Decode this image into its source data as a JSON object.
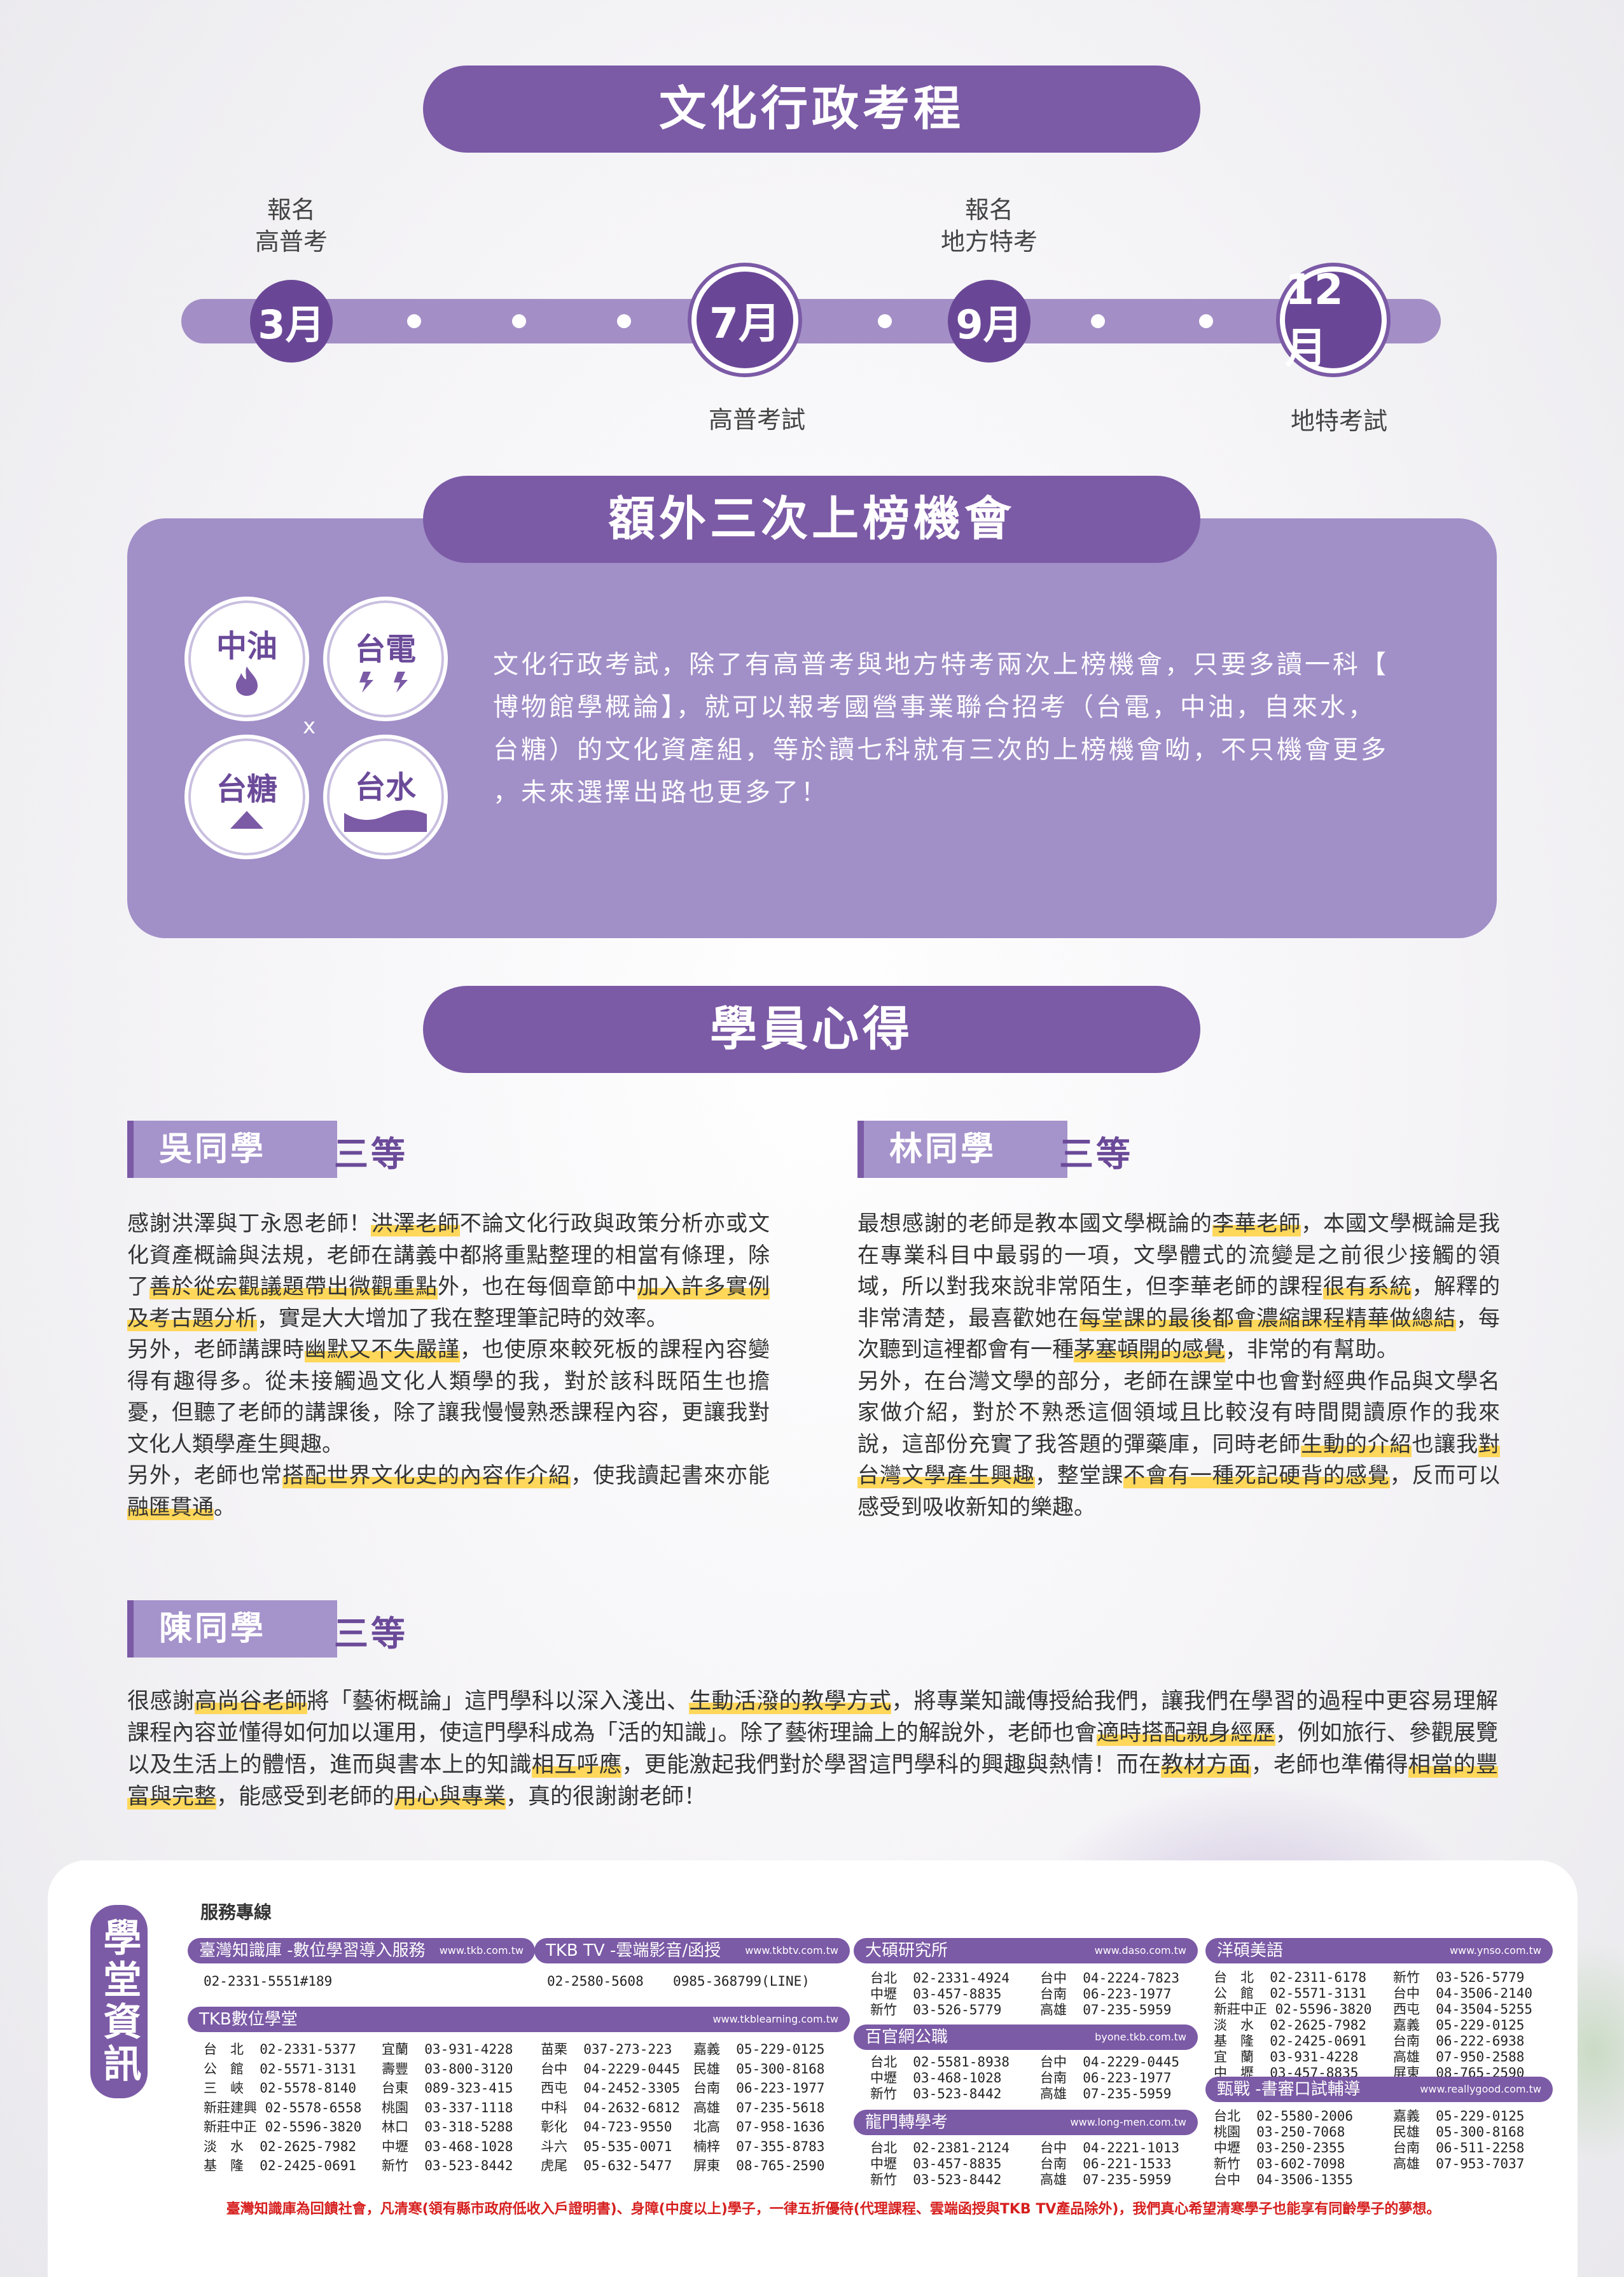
{
  "header": {
    "title": "文化行政考程"
  },
  "timeline": {
    "months": [
      "3月",
      "7月",
      "9月",
      "12月"
    ],
    "top_labels": [
      {
        "line1": "報名",
        "line2": "高普考"
      },
      {
        "line1": "報名",
        "line2": "地方特考"
      }
    ],
    "bottom_labels": [
      "高普考試",
      "地特考試"
    ]
  },
  "opportunity": {
    "title": "額外三次上榜機會",
    "badges": [
      "中油",
      "台電",
      "台糖",
      "台水"
    ],
    "times": "x",
    "lines": [
      "文化行政考試，除了有高普考與地方特考兩次上榜機會，只要多讀一科【",
      "博物館學概論】，就可以報考國營事業聯合招考（台電，中油，自來水，",
      "台糖）的文化資產組，等於讀七科就有三次的上榜機會呦，不只機會更多",
      "，未來選擇出路也更多了！"
    ]
  },
  "testimonials": {
    "title": "學員心得",
    "wu": {
      "name": "吳同學",
      "rank": "三等",
      "p1a": "感謝洪澤與丁永恩老師！",
      "p1h1": "洪澤老師",
      "p1b": "不論文化行政與政策分析亦或文化資產概論與法規，老師在講義中都將重點整理的相當有條理，除了",
      "p1h2": "善於從宏觀議題帶出微觀重點",
      "p1c": "外，也在每個章節中",
      "p1h3": "加入許多實例及考古題分析",
      "p1d": "，實是大大增加了我在整理筆記時的效率。",
      "p2a": "另外，老師講課時",
      "p2h1": "幽默又不失嚴謹",
      "p2b": "，也使原來較死板的課程內容變得有趣得多。從未接觸過文化人類學的我，對於該科既陌生也擔憂，但聽了老師的講課後，除了讓我慢慢熟悉課程內容，更讓我對文化人類學產生興趣。",
      "p3a": "另外，老師也常",
      "p3h1": "搭配世界文化史的內容作介紹",
      "p3b": "，使我讀起書來亦能",
      "p3h2": "融匯貫通",
      "p3c": "。"
    },
    "lin": {
      "name": "林同學",
      "rank": "三等",
      "p1a": "最想感謝的老師是教本國文學概論的",
      "p1h1": "李華老師",
      "p1b": "，本國文學概論是我在專業科目中最弱的一項，文學體式的流變是之前很少接觸的領域，所以對我來說非常陌生，但李華老師的課程",
      "p1h2": "很有系統",
      "p1c": "，解釋的非常清楚，最喜歡她在",
      "p1h3": "每堂課的最後都會濃縮課程精華做總結",
      "p1d": "，每次聽到這裡都會有一種",
      "p1h4": "茅塞頓開的感覺",
      "p1e": "，非常的有幫助。",
      "p2a": "另外，在台灣文學的部分，老師在課堂中也會對經典作品與文學名家做介紹，對於不熟悉這個領域且比較沒有時間閱讀原作的我來說，這部份充實了我答題的彈藥庫，同時老師",
      "p2h1": "生動的介紹",
      "p2b": "也讓我",
      "p2h2": "對台灣文學產生興趣",
      "p2c": "，整堂課",
      "p2h3": "不會有一種死記硬背的感覺",
      "p2d": "，反而可以感受到吸收新知的樂趣。"
    },
    "chen": {
      "name": "陳同學",
      "rank": "三等",
      "a": "很感謝",
      "h1": "高尚谷老師",
      "b": "將「藝術概論」這門學科以深入淺出、",
      "h2": "生動活潑的教學方式",
      "c": "，將專業知識傳授給我們，讓我們在學習的過程中更容易理解課程內容並懂得如何加以運用，使這門學科成為「活的知識」。除了藝術理論上的解說外，老師也會",
      "h3": "適時搭配親身經歷",
      "d": "，例如旅行、參觀展覽以及生活上的體悟，進而與書本上的知識",
      "h4": "相互呼應",
      "e": "，更能激起我們對於學習這門學科的興趣與熱情！而在",
      "h5": "教材方面",
      "f": "，老師也準備得",
      "h6": "相當的豐富與完整",
      "g": "，能感受到老師的",
      "h7": "用心與專業",
      "h": "，真的很謝謝老師！"
    }
  },
  "footer": {
    "side_title": "學堂資訊",
    "service_label": "服務專線",
    "tkb_title": "臺灣知識庫 -數位學習導入服務",
    "tkb_url": "www.tkb.com.tw",
    "tkb_phone": "02-2331-5551#189",
    "tkbtv_title": "TKB TV -雲端影音/函授",
    "tkbtv_url": "www.tkbtv.com.tw",
    "tkbtv_phone1": "02-2580-5608",
    "tkbtv_phone2": "0985-368799(LINE)",
    "digital_title": "TKB數位學堂",
    "digital_url": "www.tkblearning.com.tw",
    "digital_col1": "台　北  02-2331-5377\n公　館  02-5571-3131\n三　峽  02-5578-8140\n新莊建興 02-5578-6558\n新莊中正 02-5596-3820\n淡　水  02-2625-7982\n基　隆  02-2425-0691",
    "digital_col2": "宜蘭  03-931-4228\n壽豐  03-800-3120\n台東  089-323-415\n桃園  03-337-1118\n林口  03-318-5288\n中壢  03-468-1028\n新竹  03-523-8442",
    "digital_col3": "苗栗  037-273-223\n台中  04-2229-0445\n西屯  04-2452-3305\n中科  04-2632-6812\n彰化  04-723-9550\n斗六  05-535-0071\n虎尾  05-632-5477",
    "digital_col4": "嘉義  05-229-0125\n民雄  05-300-8168\n台南  06-223-1977\n高雄  07-235-5618\n北高  07-958-1636\n楠梓  07-355-8783\n屏東  08-765-2590",
    "daso_title": "大碩研究所",
    "daso_url": "www.daso.com.tw",
    "daso_col1": "台北  02-2331-4924\n中壢  03-457-8835\n新竹  03-526-5779",
    "daso_col2": "台中  04-2224-7823\n台南  06-223-1977\n高雄  07-235-5959",
    "byone_title": "百官網公職",
    "byone_url": "byone.tkb.com.tw",
    "byone_col1": "台北  02-5581-8938\n中壢  03-468-1028\n新竹  03-523-8442",
    "byone_col2": "台中  04-2229-0445\n台南  06-223-1977\n高雄  07-235-5959",
    "longmen_title": "龍門轉學考",
    "longmen_url": "www.long-men.com.tw",
    "longmen_col1": "台北  02-2381-2124\n中壢  03-457-8835\n新竹  03-523-8442",
    "longmen_col2": "台中  04-2221-1013\n台南  06-221-1533\n高雄  07-235-5959",
    "ynso_title": "洋碩美語",
    "ynso_url": "www.ynso.com.tw",
    "ynso_col1": "台　北  02-2311-6178\n公　館  02-5571-3131\n新莊中正 02-5596-3820\n淡　水  02-2625-7982\n基　隆  02-2425-0691\n宜　蘭  03-931-4228\n中　壢  03-457-8835",
    "ynso_col2": "新竹  03-526-5779\n台中  04-3506-2140\n西屯  04-3504-5255\n嘉義  05-229-0125\n台南  06-222-6938\n高雄  07-950-2588\n屏東  08-765-2590",
    "good_title": "甄戰 -書審口試輔導",
    "good_url": "www.reallygood.com.tw",
    "good_col1": "台北  02-5580-2006\n桃園  03-250-7068\n中壢  03-250-2355\n新竹  03-602-7098\n台中  04-3506-1355",
    "good_col2": "嘉義  05-229-0125\n民雄  05-300-8168\n台南  06-511-2258\n高雄  07-953-7037",
    "note": "臺灣知識庫為回饋社會，凡清寒(領有縣市政府低收入戶證明書)、身障(中度以上)學子，一律五折優待(代理課程、雲端函授與TKB TV產品除外)，我們真心希望清寒學子也能享有同齡學子的夢想。"
  },
  "colors": {
    "primary": "#7b5aa6",
    "light": "#a18fc8",
    "highlight": "#ffd75a",
    "note": "#d6201f"
  }
}
